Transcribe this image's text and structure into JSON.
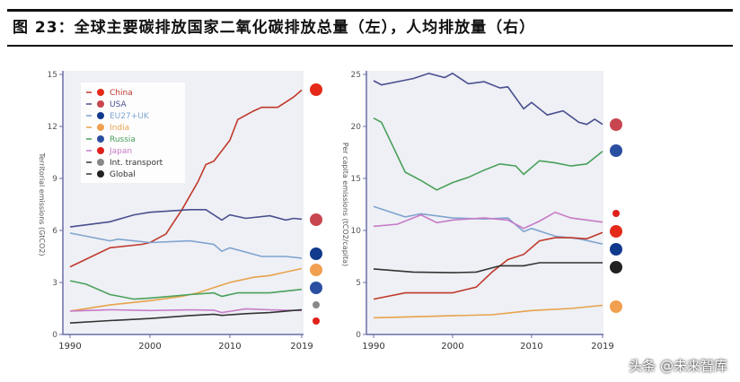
{
  "title": "图 23：全球主要碳排放国家二氧化碳排放总量（左），人均排放量（右）",
  "watermark": "头条 @未来智库",
  "colors": {
    "China": "#c0392b",
    "USA": "#4a4f8f",
    "EU27+UK": "#7fa3cf",
    "India": "#e8a24a",
    "Russia": "#4aa05a",
    "Japan": "#c77ac7",
    "Int. transport": "#333333",
    "Global": "#333333"
  },
  "flag_colors": {
    "China": "#e52a1a",
    "USA": "#c8464f",
    "EU27+UK": "#103a8c",
    "India": "#f0a050",
    "Russia": "#2b4fa0",
    "Japan": "#e0201a",
    "Int. transport": "#888888",
    "Global": "#222222"
  },
  "chart_data": [
    {
      "type": "line",
      "ylabel": "Territorial emissions (GtCO2)",
      "xlim": [
        1990,
        2019
      ],
      "ylim": [
        0,
        15
      ],
      "xticks": [
        "1990",
        "2000",
        "2010",
        "2019"
      ],
      "yticks": [
        "0",
        "3",
        "6",
        "9",
        "12",
        "15"
      ],
      "grid": false,
      "legend": "top-left",
      "legend_entries": [
        "China",
        "USA",
        "EU27+UK",
        "India",
        "Russia",
        "Japan",
        "Int. transport",
        "Global"
      ],
      "series": [
        {
          "name": "China",
          "x": [
            1990,
            1995,
            1999,
            2000,
            2002,
            2004,
            2006,
            2007,
            2008,
            2010,
            2011,
            2013,
            2014,
            2016,
            2018,
            2019
          ],
          "y": [
            3.9,
            5.0,
            5.2,
            5.3,
            5.8,
            7.2,
            8.8,
            9.8,
            10.0,
            11.2,
            12.4,
            12.9,
            13.1,
            13.1,
            13.7,
            14.1
          ]
        },
        {
          "name": "USA",
          "x": [
            1990,
            1995,
            1998,
            2000,
            2005,
            2007,
            2009,
            2010,
            2012,
            2015,
            2017,
            2018,
            2019
          ],
          "y": [
            6.2,
            6.5,
            6.9,
            7.05,
            7.2,
            7.2,
            6.6,
            6.9,
            6.7,
            6.85,
            6.6,
            6.7,
            6.65
          ]
        },
        {
          "name": "EU27+UK",
          "x": [
            1990,
            1995,
            1996,
            2000,
            2005,
            2008,
            2009,
            2010,
            2014,
            2017,
            2019
          ],
          "y": [
            5.85,
            5.4,
            5.5,
            5.3,
            5.4,
            5.2,
            4.8,
            5.0,
            4.5,
            4.5,
            4.4
          ]
        },
        {
          "name": "India",
          "x": [
            1990,
            1995,
            2000,
            2004,
            2006,
            2008,
            2010,
            2013,
            2015,
            2017,
            2019
          ],
          "y": [
            1.35,
            1.7,
            1.95,
            2.2,
            2.4,
            2.7,
            3.0,
            3.3,
            3.4,
            3.6,
            3.8
          ]
        },
        {
          "name": "Russia",
          "x": [
            1990,
            1992,
            1995,
            1998,
            2000,
            2005,
            2008,
            2009,
            2011,
            2015,
            2019
          ],
          "y": [
            3.1,
            2.9,
            2.3,
            2.04,
            2.1,
            2.3,
            2.4,
            2.2,
            2.4,
            2.4,
            2.6
          ]
        },
        {
          "name": "Japan",
          "x": [
            1990,
            1995,
            2000,
            2005,
            2008,
            2009,
            2012,
            2015,
            2019
          ],
          "y": [
            1.35,
            1.43,
            1.38,
            1.42,
            1.4,
            1.26,
            1.48,
            1.42,
            1.38
          ]
        },
        {
          "name": "Int. transport",
          "x": [
            1990,
            1995,
            2000,
            2005,
            2008,
            2009,
            2012,
            2015,
            2019
          ],
          "y": [
            0.66,
            0.8,
            0.92,
            1.09,
            1.17,
            1.1,
            1.2,
            1.26,
            1.43
          ]
        }
      ]
    },
    {
      "type": "line",
      "ylabel": "Per capita emissions (tCO2/capita)",
      "xlim": [
        1990,
        2019
      ],
      "ylim": [
        0,
        25
      ],
      "xticks": [
        "1990",
        "2000",
        "2010",
        "2019"
      ],
      "yticks": [
        "0",
        "5",
        "10",
        "15",
        "20",
        "25"
      ],
      "grid": false,
      "series": [
        {
          "name": "USA",
          "x": [
            1990,
            1991,
            1995,
            1997,
            1999,
            2000,
            2002,
            2004,
            2006,
            2007,
            2009,
            2010,
            2012,
            2014,
            2016,
            2017,
            2018,
            2019
          ],
          "y": [
            24.4,
            24.0,
            24.6,
            25.1,
            24.7,
            25.1,
            24.1,
            24.3,
            23.7,
            23.8,
            21.7,
            22.3,
            21.1,
            21.5,
            20.4,
            20.2,
            20.7,
            20.2
          ]
        },
        {
          "name": "Russia",
          "x": [
            1990,
            1991,
            1994,
            1996,
            1998,
            2000,
            2002,
            2004,
            2006,
            2008,
            2009,
            2011,
            2013,
            2015,
            2017,
            2019
          ],
          "y": [
            20.8,
            20.4,
            15.6,
            14.8,
            13.9,
            14.6,
            15.1,
            15.8,
            16.4,
            16.2,
            15.4,
            16.7,
            16.5,
            16.2,
            16.4,
            17.6
          ]
        },
        {
          "name": "EU27+UK",
          "x": [
            1990,
            1994,
            1996,
            2000,
            2004,
            2007,
            2009,
            2010,
            2013,
            2016,
            2019
          ],
          "y": [
            12.3,
            11.3,
            11.6,
            11.2,
            11.1,
            11.2,
            9.9,
            10.2,
            9.45,
            9.2,
            8.7
          ]
        },
        {
          "name": "Japan",
          "x": [
            1990,
            1993,
            1996,
            1998,
            2000,
            2004,
            2007,
            2009,
            2011,
            2013,
            2015,
            2019
          ],
          "y": [
            10.4,
            10.6,
            11.5,
            10.75,
            11.0,
            11.2,
            11.0,
            10.2,
            10.9,
            11.75,
            11.2,
            10.8
          ]
        },
        {
          "name": "China",
          "x": [
            1990,
            1994,
            2000,
            2003,
            2005,
            2007,
            2009,
            2011,
            2013,
            2015,
            2017,
            2019
          ],
          "y": [
            3.4,
            4.0,
            4.0,
            4.55,
            6.0,
            7.2,
            7.7,
            9.0,
            9.3,
            9.3,
            9.2,
            9.8
          ]
        },
        {
          "name": "Global",
          "x": [
            1990,
            1995,
            2000,
            2003,
            2006,
            2009,
            2011,
            2015,
            2019
          ],
          "y": [
            6.3,
            6.0,
            5.94,
            6.0,
            6.6,
            6.6,
            6.9,
            6.9,
            6.9
          ]
        },
        {
          "name": "India",
          "x": [
            1990,
            2000,
            2005,
            2010,
            2015,
            2019
          ],
          "y": [
            1.6,
            1.8,
            1.9,
            2.3,
            2.5,
            2.8
          ]
        }
      ]
    }
  ]
}
